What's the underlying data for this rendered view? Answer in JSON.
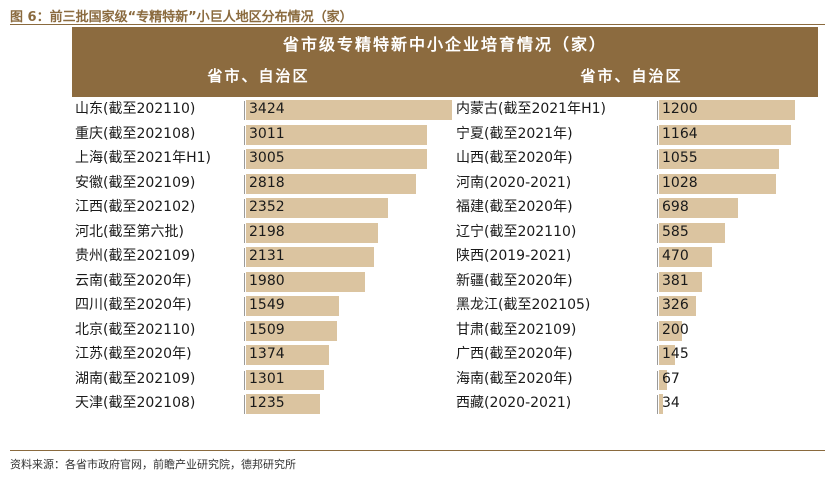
{
  "figure_label": "图 6：前三批国家级“专精特新”小巨人地区分布情况（家）",
  "source": "资料来源：各省市政府官网，前瞻产业研究院，德邦研究所",
  "chart_data": {
    "type": "table",
    "title": "省市级专精特新中小企业培育情况（家）",
    "column_headers": [
      "省市、自治区",
      "省市、自治区"
    ],
    "bar_color": "#dbc4a0",
    "header_color": "#8c6b3f",
    "left": [
      {
        "name": "山东(截至202110)",
        "value": 3424
      },
      {
        "name": "重庆(截至202108)",
        "value": 3011
      },
      {
        "name": "上海(截至2021年H1)",
        "value": 3005
      },
      {
        "name": "安徽(截至202109)",
        "value": 2818
      },
      {
        "name": "江西(截至202102)",
        "value": 2352
      },
      {
        "name": "河北(截至第六批)",
        "value": 2198
      },
      {
        "name": "贵州(截至202109)",
        "value": 2131
      },
      {
        "name": "云南(截至2020年)",
        "value": 1980
      },
      {
        "name": "四川(截至2020年)",
        "value": 1549
      },
      {
        "name": "北京(截至202110)",
        "value": 1509
      },
      {
        "name": "江苏(截至2020年)",
        "value": 1374
      },
      {
        "name": "湖南(截至202109)",
        "value": 1301
      },
      {
        "name": "天津(截至202108)",
        "value": 1235
      }
    ],
    "right": [
      {
        "name": "内蒙古(截至2021年H1)",
        "value": 1200
      },
      {
        "name": "宁夏(截至2021年)",
        "value": 1164
      },
      {
        "name": "山西(截至2020年)",
        "value": 1055
      },
      {
        "name": "河南(2020-2021)",
        "value": 1028
      },
      {
        "name": "福建(截至2020年)",
        "value": 698
      },
      {
        "name": "辽宁(截至202110)",
        "value": 585
      },
      {
        "name": "陕西(2019-2021)",
        "value": 470
      },
      {
        "name": "新疆(截至2020年)",
        "value": 381
      },
      {
        "name": "黑龙江(截至202105)",
        "value": 326
      },
      {
        "name": "甘肃(截至202109)",
        "value": 200
      },
      {
        "name": "广西(截至2020年)",
        "value": 145
      },
      {
        "name": "海南(截至2020年)",
        "value": 67
      },
      {
        "name": "西藏(2020-2021)",
        "value": 34
      }
    ]
  }
}
